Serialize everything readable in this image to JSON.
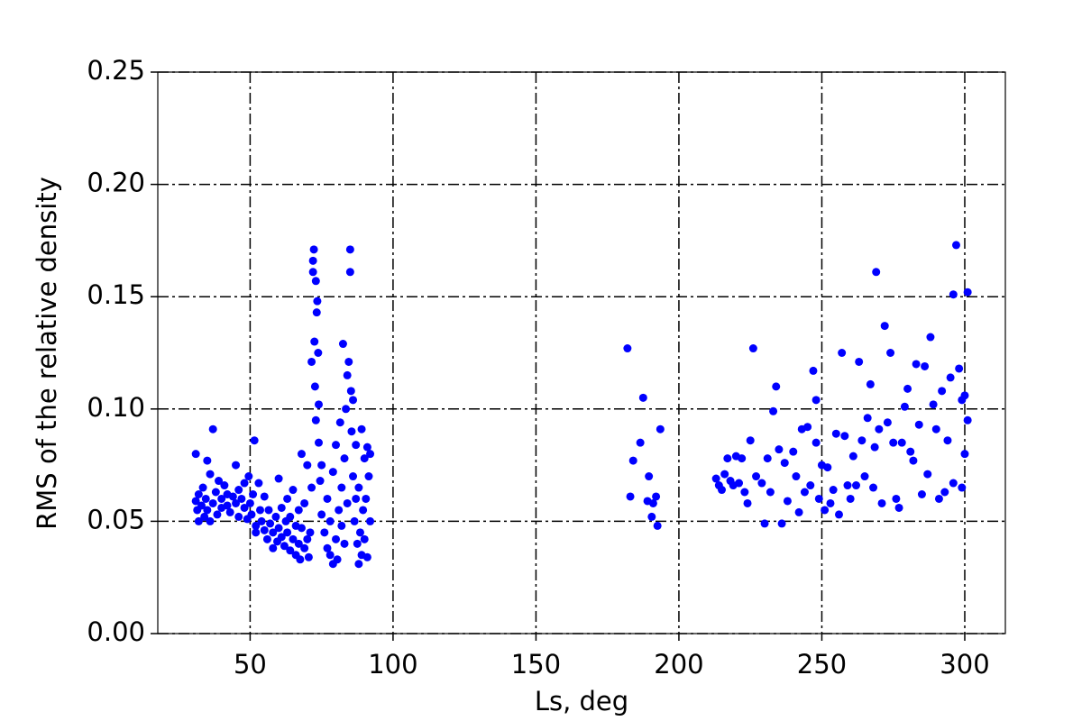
{
  "chart_data": {
    "type": "scatter",
    "xlabel": "Ls, deg",
    "ylabel": "RMS of the relative density",
    "xlim": [
      17.7,
      314.2
    ],
    "ylim": [
      0,
      0.25
    ],
    "xticks": [
      50,
      100,
      150,
      200,
      250,
      300
    ],
    "yticks": [
      {
        "value": 0,
        "label": "0.00"
      },
      0.05,
      {
        "value": 0.1,
        "label": "0.10"
      },
      0.15,
      {
        "value": 0.2,
        "label": "0.20"
      },
      0.25
    ],
    "grid": true,
    "series": [
      {
        "color": "#0000ff",
        "x": [
          31,
          31,
          31.5,
          32,
          32,
          33,
          33.5,
          34,
          34.5,
          35,
          35,
          36,
          36,
          37,
          37,
          38,
          38.5,
          39,
          40,
          40,
          41,
          42,
          42,
          43,
          44,
          45,
          45,
          46,
          46,
          47,
          48,
          48,
          49,
          49.5,
          50,
          50.5,
          51,
          51.5,
          52,
          52,
          53,
          53.5,
          54,
          55,
          55,
          56,
          56.5,
          57,
          58,
          58,
          59,
          59.5,
          60,
          60,
          61,
          61,
          62,
          62.5,
          63,
          63,
          64,
          64,
          65,
          65,
          66,
          66,
          67,
          67,
          67.5,
          68,
          68,
          69,
          69,
          70,
          70,
          70.5,
          71,
          71.5,
          71.5,
          72,
          72,
          72.3,
          72.5,
          72.7,
          73,
          73,
          73.3,
          73.5,
          73.8,
          74,
          74,
          74.5,
          75,
          75,
          76,
          77,
          77,
          78,
          78,
          79,
          79,
          80,
          80,
          80.5,
          81,
          81.5,
          82,
          82,
          82.5,
          83,
          83,
          83.5,
          84,
          84,
          84.5,
          85,
          85,
          85.3,
          85.5,
          86,
          86,
          86.5,
          87,
          87,
          87.5,
          88,
          88,
          88.5,
          89,
          89,
          89.5,
          90,
          90,
          90.5,
          91,
          91,
          91.5,
          92,
          92,
          182,
          183,
          184,
          186.5,
          187.5,
          189,
          189.5,
          190.5,
          191,
          192,
          192.5,
          193.5,
          213,
          214,
          215,
          216,
          217,
          218,
          219,
          220,
          221,
          222,
          223,
          224,
          225,
          226,
          227,
          229,
          230,
          231,
          232,
          233,
          234,
          235,
          236,
          237,
          238,
          240,
          241,
          242,
          243,
          244,
          245,
          246,
          247,
          248,
          248,
          249,
          250,
          251,
          252,
          253,
          254,
          255,
          256,
          257,
          258,
          259,
          260,
          261,
          262,
          263,
          264,
          265,
          266,
          267,
          268,
          268.5,
          269,
          270,
          271,
          272,
          273,
          274,
          275,
          276,
          277,
          278,
          279,
          280,
          281,
          282,
          283,
          284,
          285,
          286,
          287,
          288,
          289,
          290,
          291,
          292,
          293,
          294,
          295,
          296,
          297,
          298,
          299,
          300,
          301,
          296,
          299,
          300,
          301
        ],
        "values": [
          0.08,
          0.059,
          0.055,
          0.05,
          0.062,
          0.057,
          0.065,
          0.052,
          0.06,
          0.077,
          0.055,
          0.071,
          0.05,
          0.091,
          0.058,
          0.063,
          0.053,
          0.068,
          0.06,
          0.056,
          0.066,
          0.057,
          0.062,
          0.054,
          0.061,
          0.075,
          0.058,
          0.052,
          0.064,
          0.06,
          0.056,
          0.067,
          0.051,
          0.07,
          0.058,
          0.053,
          0.062,
          0.086,
          0.048,
          0.045,
          0.067,
          0.055,
          0.05,
          0.061,
          0.046,
          0.042,
          0.055,
          0.049,
          0.045,
          0.038,
          0.052,
          0.041,
          0.047,
          0.069,
          0.043,
          0.056,
          0.039,
          0.05,
          0.045,
          0.06,
          0.037,
          0.052,
          0.042,
          0.064,
          0.048,
          0.035,
          0.055,
          0.04,
          0.033,
          0.047,
          0.08,
          0.038,
          0.058,
          0.042,
          0.075,
          0.034,
          0.045,
          0.065,
          0.121,
          0.161,
          0.166,
          0.171,
          0.13,
          0.11,
          0.157,
          0.095,
          0.143,
          0.148,
          0.125,
          0.085,
          0.102,
          0.068,
          0.075,
          0.053,
          0.045,
          0.038,
          0.06,
          0.035,
          0.05,
          0.031,
          0.072,
          0.042,
          0.084,
          0.033,
          0.055,
          0.094,
          0.048,
          0.065,
          0.129,
          0.078,
          0.04,
          0.1,
          0.115,
          0.058,
          0.121,
          0.171,
          0.161,
          0.108,
          0.09,
          0.104,
          0.07,
          0.05,
          0.06,
          0.084,
          0.04,
          0.031,
          0.065,
          0.045,
          0.091,
          0.035,
          0.055,
          0.078,
          0.042,
          0.06,
          0.083,
          0.034,
          0.07,
          0.08,
          0.05,
          0.127,
          0.061,
          0.077,
          0.085,
          0.105,
          0.059,
          0.07,
          0.052,
          0.058,
          0.061,
          0.048,
          0.091,
          0.069,
          0.066,
          0.064,
          0.071,
          0.078,
          0.068,
          0.066,
          0.079,
          0.067,
          0.078,
          0.063,
          0.058,
          0.086,
          0.127,
          0.07,
          0.067,
          0.049,
          0.078,
          0.063,
          0.099,
          0.11,
          0.082,
          0.049,
          0.076,
          0.059,
          0.081,
          0.07,
          0.054,
          0.091,
          0.063,
          0.092,
          0.066,
          0.117,
          0.104,
          0.085,
          0.06,
          0.075,
          0.055,
          0.074,
          0.058,
          0.064,
          0.089,
          0.053,
          0.125,
          0.088,
          0.066,
          0.06,
          0.079,
          0.066,
          0.121,
          0.086,
          0.07,
          0.096,
          0.111,
          0.065,
          0.083,
          0.161,
          0.091,
          0.058,
          0.137,
          0.094,
          0.125,
          0.085,
          0.06,
          0.056,
          0.085,
          0.101,
          0.109,
          0.081,
          0.077,
          0.12,
          0.093,
          0.062,
          0.119,
          0.071,
          0.132,
          0.102,
          0.091,
          0.06,
          0.108,
          0.063,
          0.086,
          0.114,
          0.067,
          0.173,
          0.118,
          0.104,
          0.08,
          0.152,
          0.151,
          0.065,
          0.106,
          0.095
        ]
      }
    ]
  }
}
